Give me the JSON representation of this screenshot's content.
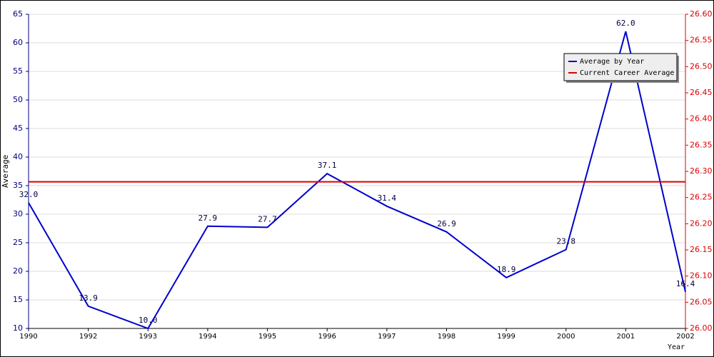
{
  "chart_data": {
    "type": "line",
    "x_label": "Year",
    "y_label": "Average",
    "categories": [
      "1990",
      "1992",
      "1993",
      "1994",
      "1995",
      "1996",
      "1997",
      "1998",
      "1999",
      "2000",
      "2001",
      "2002"
    ],
    "series": [
      {
        "name": "Average by Year",
        "color": "#0000cc",
        "values": [
          32.0,
          13.9,
          10.0,
          27.9,
          27.7,
          37.1,
          31.4,
          26.9,
          18.9,
          23.8,
          62.0,
          16.4
        ],
        "value_labels": [
          "32.0",
          "13.9",
          "10.0",
          "27.9",
          "27.7",
          "37.1",
          "31.4",
          "26.9",
          "18.9",
          "23.8",
          "62.0",
          "16.4"
        ]
      },
      {
        "name": "Current Career Average",
        "color": "#dd0000",
        "axis": "y2",
        "values": [
          26.28,
          26.28,
          26.28,
          26.28,
          26.28,
          26.28,
          26.28,
          26.28,
          26.28,
          26.28,
          26.28,
          26.28
        ]
      }
    ],
    "ylim": [
      10,
      65
    ],
    "yticks": [
      10,
      15,
      20,
      25,
      30,
      35,
      40,
      45,
      50,
      55,
      60,
      65
    ],
    "y2lim": [
      26.0,
      26.6
    ],
    "y2ticks": [
      {
        "value": 26.0,
        "label": "26.00"
      },
      26.05,
      {
        "value": 26.1,
        "label": "26.10"
      },
      26.15,
      {
        "value": 26.2,
        "label": "26.20"
      },
      26.25,
      {
        "value": 26.3,
        "label": "26.30"
      },
      26.35,
      {
        "value": 26.4,
        "label": "26.40"
      },
      26.45,
      {
        "value": 26.5,
        "label": "26.50"
      },
      26.55,
      {
        "value": 26.6,
        "label": "26.60"
      }
    ],
    "grid": true,
    "legend": "upper right"
  }
}
